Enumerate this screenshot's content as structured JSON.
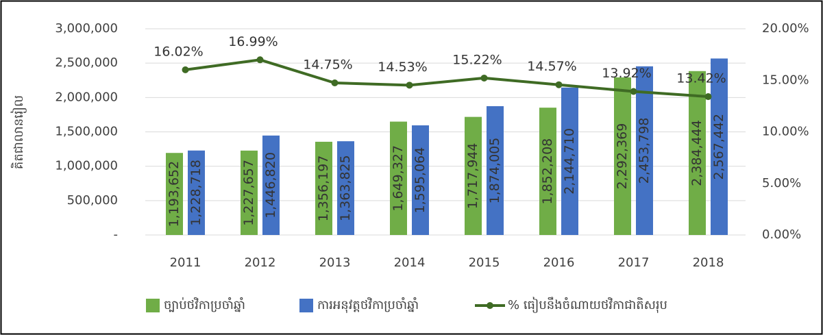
{
  "chart_data": {
    "type": "bar",
    "categories": [
      "2011",
      "2012",
      "2013",
      "2014",
      "2015",
      "2016",
      "2017",
      "2018"
    ],
    "y_label": "គិតជាលានរៀល",
    "ylim": [
      0,
      3000000
    ],
    "yticks": [
      {
        "value": 0,
        "label": "-"
      },
      {
        "value": 500000,
        "label": "500,000"
      },
      {
        "value": 1000000,
        "label": "1,000,000"
      },
      {
        "value": 1500000,
        "label": "1,500,000"
      },
      {
        "value": 2000000,
        "label": "2,000,000"
      },
      {
        "value": 2500000,
        "label": "2,500,000"
      },
      {
        "value": 3000000,
        "label": "3,000,000"
      }
    ],
    "y2lim": [
      0,
      20
    ],
    "y2ticks": [
      {
        "value": 0,
        "label": "0.00%"
      },
      {
        "value": 5,
        "label": "5.00%"
      },
      {
        "value": 10,
        "label": "10.00%"
      },
      {
        "value": 15,
        "label": "15.00%"
      },
      {
        "value": 20,
        "label": "20.00%"
      }
    ],
    "grid": true,
    "legend": "bottom",
    "series": [
      {
        "name": "ច្បាប់ថវិកាប្រចាំឆ្នាំ",
        "type": "bar",
        "color": "#70ad47",
        "values": [
          1193652,
          1227657,
          1356197,
          1649327,
          1717944,
          1852208,
          2292369,
          2384444
        ],
        "value_labels": [
          "1,193,652",
          "1,227,657",
          "1,356,197",
          "1,649,327",
          "1,717,944",
          "1,852,208",
          "2,292,369",
          "2,384,444"
        ]
      },
      {
        "name": "ការអនុវត្តថវិកាប្រចាំឆ្នាំ",
        "type": "bar",
        "color": "#4472c4",
        "values": [
          1228718,
          1446820,
          1363825,
          1595064,
          1874005,
          2144710,
          2453798,
          2567442
        ],
        "value_labels": [
          "1,228,718",
          "1,446,820",
          "1,363,825",
          "1,595,064",
          "1,874,005",
          "2,144,710",
          "2,453,798",
          "2,567,442"
        ]
      },
      {
        "name": "% ធៀបនឹងចំណាយថវិកាជាតិសរុប",
        "type": "line",
        "axis": "y2",
        "color": "#3f6b24",
        "values": [
          16.02,
          16.99,
          14.75,
          14.53,
          15.22,
          14.57,
          13.92,
          13.42
        ],
        "value_labels": [
          "16.02%",
          "16.99%",
          "14.75%",
          "14.53%",
          "15.22%",
          "14.57%",
          "13.92%",
          "13.42%"
        ]
      }
    ]
  }
}
